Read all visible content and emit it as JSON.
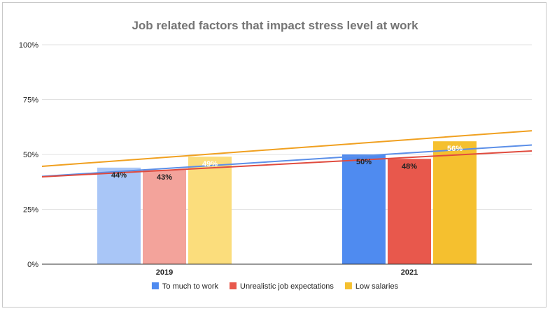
{
  "chart_data": {
    "type": "bar",
    "title": "Job related factors that impact stress level at work",
    "categories": [
      "2019",
      "2021"
    ],
    "series": [
      {
        "name": "To much to work",
        "values": [
          44,
          50
        ],
        "color": "#4f8bf0",
        "colorFaded": "#a9c6f7",
        "trend": [
          40.0,
          54.3
        ]
      },
      {
        "name": "Unrealistic job expectations",
        "values": [
          43,
          48
        ],
        "color": "#e8584c",
        "colorFaded": "#f3a39b",
        "trend": [
          39.8,
          51.6
        ]
      },
      {
        "name": "Low salaries",
        "values": [
          49,
          56
        ],
        "color": "#f5c02f",
        "colorFaded": "#fbdd7c",
        "trend": [
          44.6,
          60.8
        ]
      }
    ],
    "trendline_colors": [
      "#5b8fe8",
      "#e04b3e",
      "#f0a020"
    ],
    "yticks": [
      "0%",
      "25%",
      "50%",
      "75%",
      "100%"
    ],
    "ylim": [
      0,
      100
    ],
    "grid": true,
    "legend_position": "bottom"
  }
}
